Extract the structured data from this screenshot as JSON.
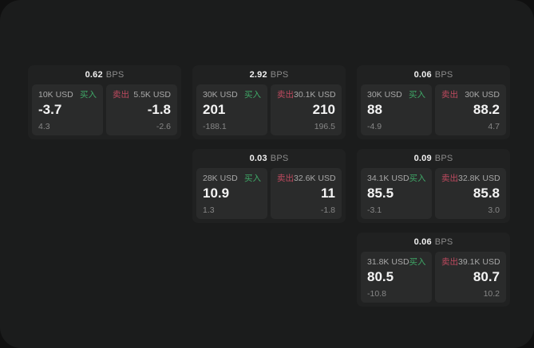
{
  "labels": {
    "bps_unit": "BPS",
    "buy": "买入",
    "sell": "卖出"
  },
  "colors": {
    "buy_green": "#3fa867",
    "sell_red": "#bf4a5f",
    "page_bg": "#1b1c1c",
    "card_bg": "#202121",
    "panel_bg": "#2a2b2b"
  },
  "cards": [
    {
      "bps": "0.62",
      "buy": {
        "size": "10K USD",
        "price": "-3.7",
        "sub": "4.3"
      },
      "sell": {
        "size": "5.5K USD",
        "price": "-1.8",
        "sub": "-2.6"
      }
    },
    {
      "bps": "2.92",
      "buy": {
        "size": "30K USD",
        "price": "201",
        "sub": "-188.1"
      },
      "sell": {
        "size": "30.1K USD",
        "price": "210",
        "sub": "196.5"
      }
    },
    {
      "bps": "0.06",
      "buy": {
        "size": "30K USD",
        "price": "88",
        "sub": "-4.9"
      },
      "sell": {
        "size": "30K USD",
        "price": "88.2",
        "sub": "4.7"
      }
    },
    {
      "bps": "0.03",
      "buy": {
        "size": "28K USD",
        "price": "10.9",
        "sub": "1.3"
      },
      "sell": {
        "size": "32.6K USD",
        "price": "11",
        "sub": "-1.8"
      }
    },
    {
      "bps": "0.09",
      "buy": {
        "size": "34.1K USD",
        "price": "85.5",
        "sub": "-3.1"
      },
      "sell": {
        "size": "32.8K USD",
        "price": "85.8",
        "sub": "3.0"
      }
    },
    {
      "bps": "0.06",
      "buy": {
        "size": "31.8K USD",
        "price": "80.5",
        "sub": "-10.8"
      },
      "sell": {
        "size": "39.1K USD",
        "price": "80.7",
        "sub": "10.2"
      }
    }
  ]
}
